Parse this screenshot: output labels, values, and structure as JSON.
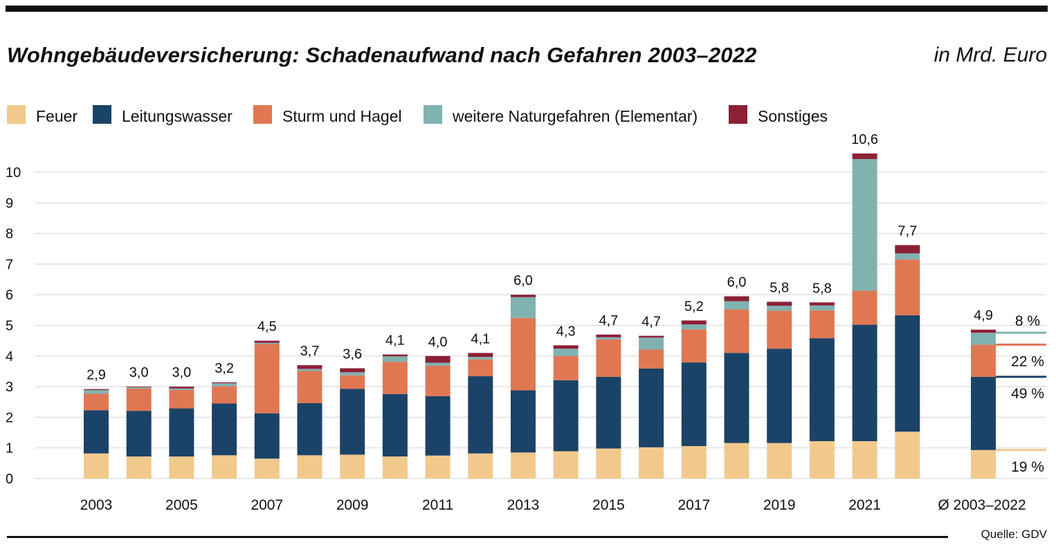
{
  "header": {
    "title": "Wohngebäudeversicherung: Schadenaufwand nach Gefahren 2003–2022",
    "unit": "in Mrd. Euro"
  },
  "footer": {
    "source": "Quelle: GDV"
  },
  "colors": {
    "feuer": "#f2c98c",
    "leitungswasser": "#1b4368",
    "sturm": "#e07753",
    "natur": "#80b2b0",
    "sonstiges": "#8c2035",
    "grid": "#d9d9d9"
  },
  "chart_data": {
    "type": "bar",
    "stacked": true,
    "title": "Wohngebäudeversicherung: Schadenaufwand nach Gefahren 2003–2022",
    "ylabel": "in Mrd. Euro",
    "ylim": [
      0,
      10.5
    ],
    "yticks": [
      "0",
      "1",
      "2",
      "3",
      "4",
      "5",
      "6",
      "7",
      "8",
      "9",
      "10"
    ],
    "categories": [
      "2003",
      "2004",
      "2005",
      "2006",
      "2007",
      "2008",
      "2009",
      "2010",
      "2011",
      "2012",
      "2013",
      "2014",
      "2015",
      "2016",
      "2017",
      "2018",
      "2019",
      "2020",
      "2021",
      "2022",
      "Ø 2003–2022"
    ],
    "xtick_labels": [
      "2003",
      "2005",
      "2007",
      "2009",
      "2011",
      "2013",
      "2015",
      "2017",
      "2019",
      "2021",
      "Ø 2003–2022"
    ],
    "series": [
      {
        "name": "Feuer",
        "key": "feuer",
        "values": [
          0.82,
          0.72,
          0.72,
          0.76,
          0.65,
          0.76,
          0.78,
          0.72,
          0.75,
          0.82,
          0.85,
          0.89,
          0.98,
          1.02,
          1.06,
          1.16,
          1.16,
          1.22,
          1.22,
          1.53,
          0.93
        ]
      },
      {
        "name": "Leitungswasser",
        "key": "leitungswasser",
        "values": [
          1.41,
          1.49,
          1.57,
          1.69,
          1.48,
          1.7,
          2.15,
          2.04,
          1.94,
          2.52,
          2.03,
          2.32,
          2.34,
          2.57,
          2.73,
          2.94,
          3.08,
          3.36,
          3.8,
          3.8,
          2.39
        ]
      },
      {
        "name": "Sturm und Hagel",
        "key": "sturm",
        "values": [
          0.54,
          0.73,
          0.6,
          0.56,
          2.26,
          1.05,
          0.44,
          1.05,
          0.99,
          0.55,
          2.36,
          0.79,
          1.22,
          0.62,
          1.08,
          1.42,
          1.24,
          0.91,
          1.11,
          1.82,
          1.05
        ]
      },
      {
        "name": "weitere Naturgefahren (Elementar)",
        "key": "natur",
        "values": [
          0.12,
          0.04,
          0.05,
          0.1,
          0.04,
          0.07,
          0.1,
          0.18,
          0.1,
          0.08,
          0.68,
          0.24,
          0.07,
          0.39,
          0.16,
          0.27,
          0.16,
          0.16,
          4.3,
          0.2,
          0.39
        ]
      },
      {
        "name": "Sonstiges",
        "key": "sonstiges",
        "values": [
          0.03,
          0.02,
          0.06,
          0.03,
          0.07,
          0.12,
          0.13,
          0.06,
          0.22,
          0.13,
          0.08,
          0.11,
          0.09,
          0.06,
          0.13,
          0.16,
          0.13,
          0.1,
          0.18,
          0.27,
          0.1
        ]
      }
    ],
    "totals": [
      "2,9",
      "3,0",
      "3,0",
      "3,2",
      "4,5",
      "3,7",
      "3,6",
      "4,1",
      "4,0",
      "4,1",
      "6,0",
      "4,3",
      "4,7",
      "4,7",
      "5,2",
      "6,0",
      "5,8",
      "5,8",
      "10,6",
      "7,7",
      "4,9"
    ],
    "average_shares": [
      {
        "label": "8 %",
        "key": "natur"
      },
      {
        "label": "22 %",
        "key": "sturm"
      },
      {
        "label": "49 %",
        "key": "leitungswasser"
      },
      {
        "label": "19 %",
        "key": "feuer"
      }
    ]
  }
}
